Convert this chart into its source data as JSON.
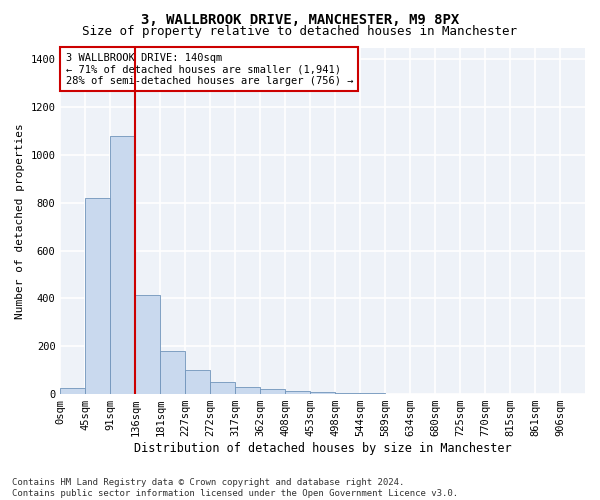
{
  "title1": "3, WALLBROOK DRIVE, MANCHESTER, M9 8PX",
  "title2": "Size of property relative to detached houses in Manchester",
  "xlabel": "Distribution of detached houses by size in Manchester",
  "ylabel": "Number of detached properties",
  "bar_labels": [
    "0sqm",
    "45sqm",
    "91sqm",
    "136sqm",
    "181sqm",
    "227sqm",
    "272sqm",
    "317sqm",
    "362sqm",
    "408sqm",
    "453sqm",
    "498sqm",
    "544sqm",
    "589sqm",
    "634sqm",
    "680sqm",
    "725sqm",
    "770sqm",
    "815sqm",
    "861sqm",
    "906sqm"
  ],
  "bar_values": [
    25,
    820,
    1080,
    415,
    180,
    100,
    52,
    30,
    20,
    13,
    8,
    5,
    3,
    2,
    1,
    0,
    0,
    0,
    0,
    0,
    0
  ],
  "bar_color": "#c9d9ee",
  "bar_edge_color": "#7094bb",
  "vline_color": "#cc0000",
  "annotation_text": "3 WALLBROOK DRIVE: 140sqm\n← 71% of detached houses are smaller (1,941)\n28% of semi-detached houses are larger (756) →",
  "annotation_box_color": "white",
  "annotation_border_color": "#cc0000",
  "ylim": [
    0,
    1450
  ],
  "yticks": [
    0,
    200,
    400,
    600,
    800,
    1000,
    1200,
    1400
  ],
  "background_color": "#eef2f8",
  "grid_color": "#ffffff",
  "footer_text": "Contains HM Land Registry data © Crown copyright and database right 2024.\nContains public sector information licensed under the Open Government Licence v3.0.",
  "title1_fontsize": 10,
  "title2_fontsize": 9,
  "xlabel_fontsize": 8.5,
  "ylabel_fontsize": 8,
  "tick_fontsize": 7.5,
  "annotation_fontsize": 7.5,
  "footer_fontsize": 6.5
}
